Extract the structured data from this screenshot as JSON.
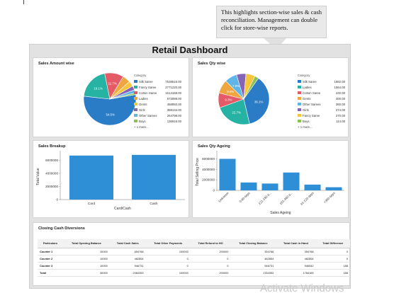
{
  "callout": {
    "text": "This highlights section-wise sales & cash reconciliation. Management can double click for store-wise reports."
  },
  "dashboard_title": "Retail Dashboard",
  "sales_amount": {
    "title": "Sales Amount wise",
    "legend_header": "Category",
    "items": [
      {
        "label": "Silk Saree",
        "value": "7538516.00",
        "color": "#2a7cc7"
      },
      {
        "label": "Fancy Saree",
        "value": "2771220.00",
        "color": "#26b3a3"
      },
      {
        "label": "Cotton Saree",
        "value": "1614168.00",
        "color": "#e55a67"
      },
      {
        "label": "Ladies",
        "value": "673088.00",
        "color": "#f0a640"
      },
      {
        "label": "Gents",
        "value": "458950.00",
        "color": "#f5c63c"
      },
      {
        "label": "Girls",
        "value": "358134.00",
        "color": "#8563b7"
      },
      {
        "label": "Other Sarees",
        "value": "264798.00",
        "color": "#5fb4e8"
      },
      {
        "label": "Boys",
        "value": "136916.00",
        "color": "#8dc253"
      }
    ],
    "more": "+ 1 more...",
    "slice_labels": [
      "54.5%",
      "19.1%",
      "11.7%"
    ]
  },
  "sales_qty": {
    "title": "Sales Qty wise",
    "legend_header": "Category",
    "items": [
      {
        "label": "Silk Saree",
        "value": "1682.00",
        "color": "#2a7cc7"
      },
      {
        "label": "Ladies",
        "value": "1064.00",
        "color": "#26b3a3"
      },
      {
        "label": "Cotton Saree",
        "value": "432.00",
        "color": "#e55a67"
      },
      {
        "label": "Gents",
        "value": "400.00",
        "color": "#f0a640"
      },
      {
        "label": "Other Sarees",
        "value": "360.00",
        "color": "#5fb4e8"
      },
      {
        "label": "Girls",
        "value": "274.00",
        "color": "#8563b7"
      },
      {
        "label": "Fancy Saree",
        "value": "270.00",
        "color": "#f5c63c"
      },
      {
        "label": "Boys",
        "value": "114.00",
        "color": "#8dc253"
      }
    ],
    "more": "+ 1 more...",
    "slice_labels": [
      "36.1%",
      "22.7%",
      "9.3%",
      "8.6%",
      "7.8%"
    ]
  },
  "sales_breakup": {
    "title": "Sales Breakup",
    "ylabel": "Total Value",
    "xlabel": "Card/Cash",
    "yticks": [
      "6000000",
      "4000000",
      "2000000",
      "0"
    ],
    "categories": [
      "Card",
      "Cash"
    ]
  },
  "qty_ageing": {
    "title": "Sales Qty Ageing",
    "ylabel": "Total Selling Price",
    "xlabel": "Sales Ageing",
    "yticks": [
      "6000000",
      "4000000",
      "2000000",
      "0"
    ],
    "categories": [
      "Unknown",
      "0-90 days",
      "121-180 d...",
      "181-360 d...",
      "61-120 days",
      ">360 days"
    ]
  },
  "closing_cash": {
    "title": "Closing Cash Diversions",
    "headers": [
      "Particulars",
      "Total Opening Balance",
      "Total Cash Sales",
      "Total Other Payments",
      "Total Refund to HO",
      "Total Closing Balance",
      "Total Cash in Hand",
      "Total Difference"
    ],
    "rows": [
      [
        "Counter 1",
        "10000",
        "654768",
        "100000",
        "200000",
        "354768",
        "354768",
        "0"
      ],
      [
        "Counter 2",
        "10000",
        "482854",
        "0",
        "0",
        "482854",
        "482854",
        "0"
      ],
      [
        "Counter 3",
        "10000",
        "946731",
        "0",
        "0",
        "946731",
        "946542",
        "188"
      ],
      [
        "Total",
        "30000",
        "2084353",
        "100000",
        "200000",
        "1784353",
        "1784165",
        "188"
      ]
    ]
  },
  "watermark": "Activate Windows",
  "chart_data": [
    {
      "type": "pie",
      "title": "Sales Amount wise",
      "categories": [
        "Silk Saree",
        "Fancy Saree",
        "Cotton Saree",
        "Ladies",
        "Gents",
        "Girls",
        "Other Sarees",
        "Boys"
      ],
      "values": [
        7538516,
        2771220,
        1614168,
        673088,
        458950,
        358134,
        264798,
        136916
      ]
    },
    {
      "type": "pie",
      "title": "Sales Qty wise",
      "categories": [
        "Silk Saree",
        "Ladies",
        "Cotton Saree",
        "Gents",
        "Other Sarees",
        "Girls",
        "Fancy Saree",
        "Boys"
      ],
      "values": [
        1682,
        1064,
        432,
        400,
        360,
        274,
        270,
        114
      ]
    },
    {
      "type": "bar",
      "title": "Sales Breakup",
      "xlabel": "Card/Cash",
      "ylabel": "Total Value",
      "categories": [
        "Card",
        "Cash"
      ],
      "values": [
        6700000,
        6800000
      ],
      "ylim": [
        0,
        7000000
      ],
      "color": "#2f8fd6"
    },
    {
      "type": "bar",
      "title": "Sales Qty Ageing",
      "xlabel": "Sales Ageing",
      "ylabel": "Total Selling Price",
      "categories": [
        "Unknown",
        "0-90 days",
        "121-180 d...",
        "181-360 d...",
        "61-120 days",
        ">360 days"
      ],
      "values": [
        6000000,
        1500000,
        1300000,
        3400000,
        1100000,
        600000
      ],
      "ylim": [
        0,
        7000000
      ],
      "color": "#2f8fd6"
    }
  ]
}
